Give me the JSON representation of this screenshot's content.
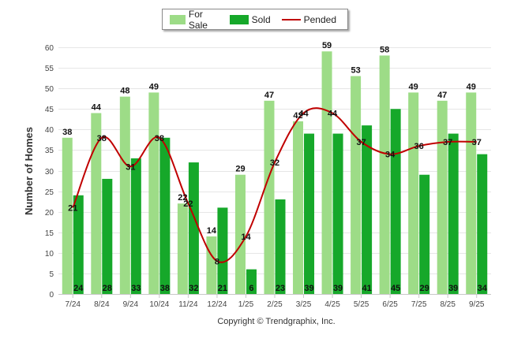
{
  "chart_data": {
    "type": "bar",
    "title": "",
    "xlabel": "",
    "ylabel": "Number of Homes",
    "ylim": [
      0,
      60
    ],
    "yticks": [
      "0",
      "5",
      "10",
      "15",
      "20",
      "25",
      "30",
      "35",
      "40",
      "45",
      "50",
      "55",
      "60"
    ],
    "grid": true,
    "legend_position": "top-center",
    "categories": [
      "7/24",
      "8/24",
      "9/24",
      "10/24",
      "11/24",
      "12/24",
      "1/25",
      "2/25",
      "3/25",
      "4/25",
      "5/25",
      "6/25",
      "7/25",
      "8/25",
      "9/25"
    ],
    "series": [
      {
        "name": "For Sale",
        "type": "bar",
        "color": "#9ddc87",
        "values": [
          38,
          44,
          48,
          49,
          22,
          14,
          29,
          47,
          42,
          59,
          53,
          58,
          49,
          47,
          49
        ],
        "labels": [
          "38",
          "44",
          "48",
          "49",
          "22",
          "14",
          "29",
          "47",
          "42",
          "59",
          "53",
          "58",
          "49",
          "47",
          "49"
        ]
      },
      {
        "name": "Sold",
        "type": "bar",
        "color": "#16a82a",
        "values": [
          24,
          28,
          33,
          38,
          32,
          21,
          6,
          23,
          39,
          39,
          41,
          45,
          29,
          39,
          34
        ],
        "labels": [
          "24",
          "28",
          "33",
          "38",
          "32",
          "21",
          "6",
          "23",
          "39",
          "39",
          "41",
          "45",
          "29",
          "39",
          "34"
        ]
      },
      {
        "name": "Pended",
        "type": "line",
        "color": "#c00000",
        "values": [
          21,
          38,
          31,
          38,
          22,
          8,
          14,
          32,
          44,
          44,
          37,
          34,
          36,
          37,
          37
        ],
        "labels": [
          "21",
          "38",
          "31",
          "38",
          "22",
          "8",
          "14",
          "32",
          "44",
          "44",
          "37",
          "34",
          "36",
          "37",
          "37"
        ]
      }
    ]
  },
  "legend": {
    "for_sale": "For Sale",
    "sold": "Sold",
    "pended": "Pended"
  },
  "footer": {
    "copyright": "Copyright © Trendgraphix, Inc."
  },
  "colors": {
    "for_sale": "#9ddc87",
    "sold": "#16a82a",
    "pended": "#c00000",
    "grid": "#e6e6e6"
  }
}
